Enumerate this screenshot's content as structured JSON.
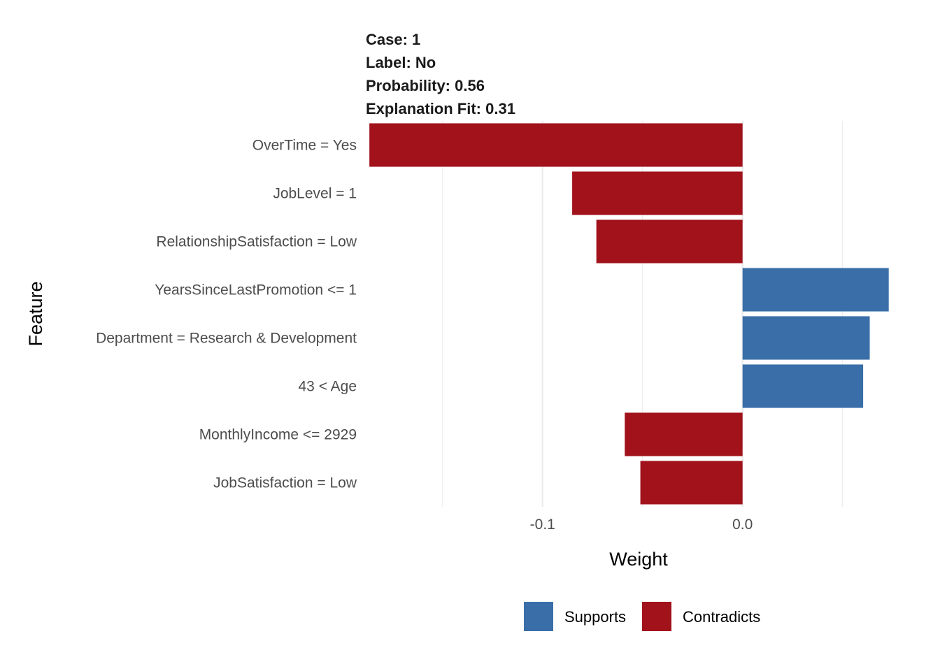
{
  "chart_data": {
    "type": "bar",
    "orientation": "horizontal",
    "title_lines": [
      "Case: 1",
      "Label: No",
      "Probability: 0.56",
      "Explanation Fit: 0.31"
    ],
    "xlabel": "Weight",
    "ylabel": "Feature",
    "xlim": [
      -0.187,
      0.0788
    ],
    "x_ticks": [
      -0.1,
      0.0
    ],
    "x_tick_labels": [
      "-0.1",
      "0.0"
    ],
    "x_gridlines": [
      -0.15,
      -0.1,
      -0.05,
      0.0,
      0.05
    ],
    "grid": true,
    "categories": [
      "OverTime = Yes",
      "JobLevel = 1",
      "RelationshipSatisfaction = Low",
      "YearsSinceLastPromotion <= 1",
      "Department = Research & Development",
      "43 < Age",
      "MonthlyIncome <= 2929",
      "JobSatisfaction = Low"
    ],
    "values": [
      -0.1866,
      -0.0852,
      -0.0731,
      0.0731,
      0.0636,
      0.0603,
      -0.0589,
      -0.0511
    ],
    "groups": [
      "Contradicts",
      "Contradicts",
      "Contradicts",
      "Supports",
      "Supports",
      "Supports",
      "Contradicts",
      "Contradicts"
    ],
    "legend": {
      "position": "bottom",
      "entries": [
        {
          "label": "Supports",
          "color": "#3a6ea8"
        },
        {
          "label": "Contradicts",
          "color": "#a1121b"
        }
      ]
    },
    "colors": {
      "Supports": "#3a6ea8",
      "Contradicts": "#a1121b",
      "grid": "#ebebeb"
    }
  }
}
